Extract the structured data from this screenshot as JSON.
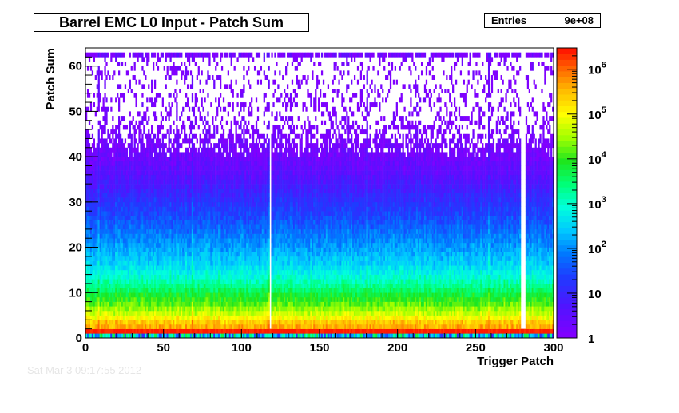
{
  "chart_data": {
    "type": "heatmap",
    "title": "Barrel EMC L0 Input - Patch Sum",
    "stats": {
      "label": "Entries",
      "value": "9e+08"
    },
    "xlabel": "Trigger Patch",
    "ylabel": "Patch Sum",
    "xlim": [
      0,
      300
    ],
    "ylim": [
      0,
      64
    ],
    "x_ticks": [
      "0",
      "50",
      "100",
      "150",
      "200",
      "250",
      "300"
    ],
    "y_ticks": [
      "0",
      "10",
      "20",
      "30",
      "40",
      "50",
      "60"
    ],
    "z_scale": "log",
    "zlim": [
      1,
      3000000
    ],
    "z_ticks": [
      {
        "value": 1,
        "base": "1",
        "exp": ""
      },
      {
        "value": 10,
        "base": "10",
        "exp": ""
      },
      {
        "value": 100,
        "base": "10",
        "exp": "2"
      },
      {
        "value": 1000,
        "base": "10",
        "exp": "3"
      },
      {
        "value": 10000,
        "base": "10",
        "exp": "4"
      },
      {
        "value": 100000,
        "base": "10",
        "exp": "5"
      },
      {
        "value": 1000000,
        "base": "10",
        "exp": "6"
      }
    ],
    "bins": {
      "nx": 300,
      "ny": 64
    },
    "profile": {
      "description_free": true,
      "row_log10_counts": [
        3.0,
        6.4,
        5.6,
        5.4,
        5.0,
        4.7,
        4.45,
        4.2,
        4.0,
        3.8,
        3.55,
        3.35,
        3.15,
        2.95,
        2.8,
        2.65,
        2.5,
        2.4,
        2.3,
        2.2,
        2.1,
        2.0,
        1.9,
        1.8,
        1.7,
        1.6,
        1.5,
        1.4,
        1.32,
        1.25,
        1.15,
        1.05,
        0.95,
        0.85,
        0.75,
        0.65,
        0.55,
        0.47,
        0.4,
        0.33,
        0.28,
        0.23,
        0.19,
        0.16,
        0.13,
        0.11,
        0.09,
        0.08,
        0.07,
        0.06,
        0.05,
        0.05,
        0.04,
        0.04,
        0.04,
        0.03,
        0.03,
        0.03,
        0.03,
        0.03,
        0.03,
        0.03,
        0.3,
        0.0
      ],
      "empty_columns": [
        118,
        279,
        280,
        281
      ],
      "hot_columns": [
        8,
        68,
        117,
        180,
        258
      ]
    },
    "grid": false,
    "legend": "color scale on right"
  },
  "footer": "Sat Mar  3 09:17:55 2012"
}
